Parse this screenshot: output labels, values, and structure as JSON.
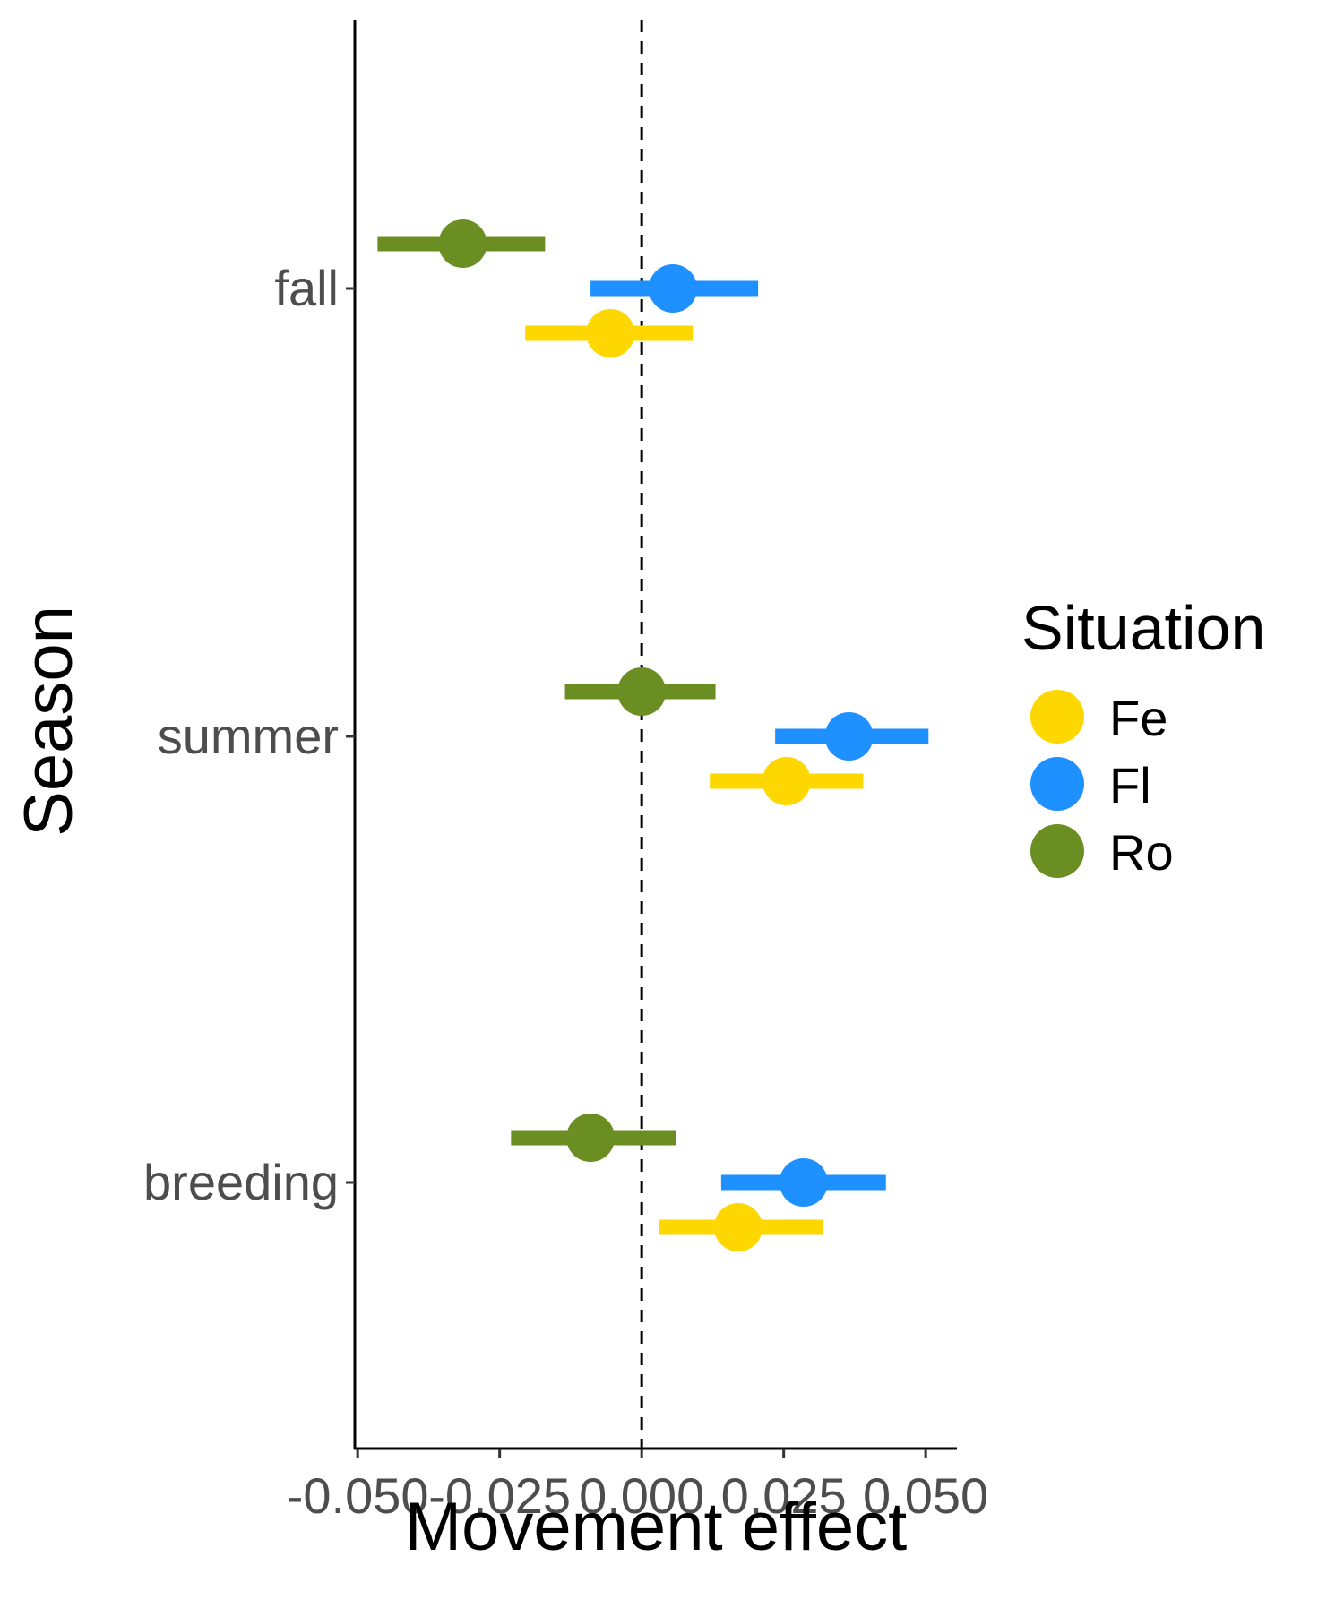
{
  "chart_data": {
    "type": "scatter",
    "subtype": "point-range (dot and whisker)",
    "xlabel": "Movement effect",
    "ylabel": "Season",
    "xlim": [
      -0.0505,
      0.0555
    ],
    "x_ticks": [
      -0.05,
      -0.025,
      0.0,
      0.025,
      0.05
    ],
    "x_tick_labels": [
      "-0.050",
      "-0.025",
      "0.000",
      "0.025",
      "0.050"
    ],
    "categories": [
      "fall",
      "summer",
      "breeding"
    ],
    "reference_line": {
      "x": 0,
      "style": "dashed"
    },
    "grid": false,
    "legend": {
      "title": "Situation",
      "position": "right"
    },
    "series": [
      {
        "name": "Fe",
        "color": "#FFD700",
        "points": [
          {
            "category": "fall",
            "estimate": -0.0055,
            "lower": -0.0205,
            "upper": 0.009
          },
          {
            "category": "summer",
            "estimate": 0.0255,
            "lower": 0.012,
            "upper": 0.039
          },
          {
            "category": "breeding",
            "estimate": 0.017,
            "lower": 0.003,
            "upper": 0.032
          }
        ]
      },
      {
        "name": "Fl",
        "color": "#1E90FF",
        "points": [
          {
            "category": "fall",
            "estimate": 0.0055,
            "lower": -0.009,
            "upper": 0.0205
          },
          {
            "category": "summer",
            "estimate": 0.0365,
            "lower": 0.0235,
            "upper": 0.0505
          },
          {
            "category": "breeding",
            "estimate": 0.0285,
            "lower": 0.014,
            "upper": 0.043
          }
        ]
      },
      {
        "name": "Ro",
        "color": "#6B8E23",
        "points": [
          {
            "category": "fall",
            "estimate": -0.0315,
            "lower": -0.0465,
            "upper": -0.017
          },
          {
            "category": "summer",
            "estimate": 0.0,
            "lower": -0.0135,
            "upper": 0.013
          },
          {
            "category": "breeding",
            "estimate": -0.009,
            "lower": -0.023,
            "upper": 0.006
          }
        ]
      }
    ]
  }
}
